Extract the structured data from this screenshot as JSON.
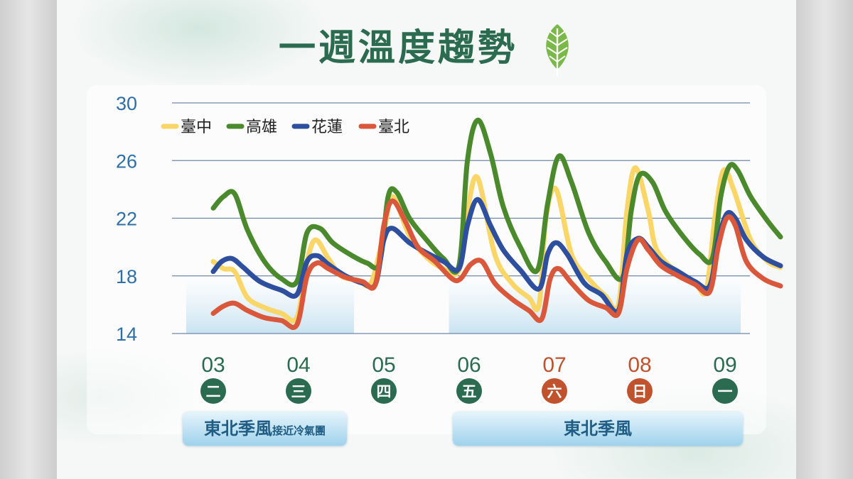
{
  "title": "一週溫度趨勢",
  "colors": {
    "title": "#2b6b50",
    "axis_text": "#2e6fa8",
    "weekday_date": "#2b6b50",
    "weekend_date": "#c0532d",
    "band": "#cfe6f3"
  },
  "banners": [
    {
      "main": "東北季風",
      "small": "接近冷氣團"
    },
    {
      "main": "東北季風",
      "small": ""
    }
  ],
  "chart_data": {
    "type": "line",
    "ylim": [
      14,
      30
    ],
    "yticks": [
      "30",
      "26",
      "22",
      "18",
      "14"
    ],
    "ytick_values": [
      30,
      26,
      22,
      18,
      14
    ],
    "categories": [
      "03",
      "04",
      "05",
      "06",
      "07",
      "08",
      "09"
    ],
    "weekdays": [
      "二",
      "三",
      "四",
      "五",
      "六",
      "日",
      "一"
    ],
    "weekend": [
      false,
      false,
      false,
      false,
      true,
      true,
      false
    ],
    "x_range": [
      0,
      6.65
    ],
    "shaded_days": [
      [
        0,
        1.65
      ],
      [
        3.08,
        6.65
      ]
    ],
    "legend": [
      "臺中",
      "高雄",
      "花蓮",
      "臺北"
    ],
    "series": [
      {
        "name": "臺中",
        "color": "#f9d667",
        "points": [
          [
            0,
            19.0
          ],
          [
            0.12,
            18.5
          ],
          [
            0.25,
            18.3
          ],
          [
            0.4,
            16.5
          ],
          [
            0.6,
            15.8
          ],
          [
            0.8,
            15.4
          ],
          [
            0.98,
            15.1
          ],
          [
            1.1,
            19.0
          ],
          [
            1.2,
            20.5
          ],
          [
            1.35,
            19.2
          ],
          [
            1.5,
            18.0
          ],
          [
            1.7,
            17.7
          ],
          [
            1.85,
            17.5
          ],
          [
            2.0,
            21.0
          ],
          [
            2.1,
            23.5
          ],
          [
            2.3,
            20.8
          ],
          [
            2.5,
            19.3
          ],
          [
            2.7,
            18.5
          ],
          [
            2.88,
            18.4
          ],
          [
            2.98,
            22.5
          ],
          [
            3.1,
            24.8
          ],
          [
            3.3,
            19.5
          ],
          [
            3.5,
            17.5
          ],
          [
            3.7,
            16.5
          ],
          [
            3.82,
            16.0
          ],
          [
            3.9,
            22.0
          ],
          [
            4.02,
            24.0
          ],
          [
            4.2,
            19.5
          ],
          [
            4.4,
            17.8
          ],
          [
            4.6,
            16.6
          ],
          [
            4.75,
            16.0
          ],
          [
            4.85,
            22.5
          ],
          [
            4.95,
            25.5
          ],
          [
            5.1,
            22.5
          ],
          [
            5.2,
            19.8
          ],
          [
            5.45,
            18.2
          ],
          [
            5.65,
            17.5
          ],
          [
            5.78,
            17.0
          ],
          [
            5.88,
            22.0
          ],
          [
            5.98,
            25.3
          ],
          [
            6.1,
            24.0
          ],
          [
            6.3,
            20.5
          ],
          [
            6.5,
            19.0
          ],
          [
            6.65,
            18.6
          ]
        ]
      },
      {
        "name": "高雄",
        "color": "#4a8a2c",
        "points": [
          [
            0,
            22.7
          ],
          [
            0.12,
            23.5
          ],
          [
            0.25,
            23.7
          ],
          [
            0.4,
            21.2
          ],
          [
            0.6,
            19.0
          ],
          [
            0.8,
            17.8
          ],
          [
            0.98,
            17.6
          ],
          [
            1.1,
            21.0
          ],
          [
            1.25,
            21.3
          ],
          [
            1.4,
            20.3
          ],
          [
            1.6,
            19.5
          ],
          [
            1.8,
            18.9
          ],
          [
            1.95,
            18.9
          ],
          [
            2.05,
            23.5
          ],
          [
            2.15,
            23.8
          ],
          [
            2.3,
            22.0
          ],
          [
            2.5,
            20.5
          ],
          [
            2.7,
            19.2
          ],
          [
            2.88,
            18.7
          ],
          [
            2.98,
            26.0
          ],
          [
            3.1,
            28.8
          ],
          [
            3.25,
            26.5
          ],
          [
            3.4,
            22.8
          ],
          [
            3.6,
            20.0
          ],
          [
            3.8,
            18.4
          ],
          [
            3.92,
            23.0
          ],
          [
            4.05,
            26.3
          ],
          [
            4.2,
            24.5
          ],
          [
            4.4,
            21.0
          ],
          [
            4.6,
            19.0
          ],
          [
            4.8,
            17.9
          ],
          [
            4.9,
            22.5
          ],
          [
            5.0,
            25.0
          ],
          [
            5.15,
            24.5
          ],
          [
            5.3,
            22.5
          ],
          [
            5.5,
            20.8
          ],
          [
            5.7,
            19.5
          ],
          [
            5.85,
            19.2
          ],
          [
            5.95,
            23.5
          ],
          [
            6.05,
            25.6
          ],
          [
            6.15,
            25.3
          ],
          [
            6.3,
            23.5
          ],
          [
            6.5,
            21.8
          ],
          [
            6.65,
            20.7
          ]
        ]
      },
      {
        "name": "花蓮",
        "color": "#2e4f9e",
        "points": [
          [
            0,
            18.3
          ],
          [
            0.1,
            19.0
          ],
          [
            0.22,
            19.2
          ],
          [
            0.35,
            18.6
          ],
          [
            0.55,
            17.6
          ],
          [
            0.8,
            17.0
          ],
          [
            0.98,
            16.7
          ],
          [
            1.1,
            19.0
          ],
          [
            1.22,
            19.4
          ],
          [
            1.35,
            18.8
          ],
          [
            1.55,
            18.0
          ],
          [
            1.75,
            17.5
          ],
          [
            1.9,
            17.4
          ],
          [
            2.0,
            20.5
          ],
          [
            2.1,
            21.3
          ],
          [
            2.3,
            20.3
          ],
          [
            2.5,
            19.6
          ],
          [
            2.7,
            19.0
          ],
          [
            2.88,
            18.5
          ],
          [
            2.98,
            21.5
          ],
          [
            3.1,
            23.3
          ],
          [
            3.25,
            21.5
          ],
          [
            3.4,
            19.8
          ],
          [
            3.6,
            18.4
          ],
          [
            3.82,
            17.1
          ],
          [
            3.92,
            19.5
          ],
          [
            4.02,
            20.3
          ],
          [
            4.15,
            19.5
          ],
          [
            4.35,
            17.5
          ],
          [
            4.55,
            16.7
          ],
          [
            4.75,
            15.6
          ],
          [
            4.85,
            19.5
          ],
          [
            4.98,
            20.6
          ],
          [
            5.1,
            20.0
          ],
          [
            5.25,
            19.0
          ],
          [
            5.45,
            18.3
          ],
          [
            5.65,
            17.6
          ],
          [
            5.82,
            17.3
          ],
          [
            5.92,
            20.5
          ],
          [
            6.02,
            22.3
          ],
          [
            6.12,
            22.0
          ],
          [
            6.25,
            20.5
          ],
          [
            6.45,
            19.3
          ],
          [
            6.65,
            18.7
          ]
        ]
      },
      {
        "name": "臺北",
        "color": "#d9583b",
        "points": [
          [
            0,
            15.4
          ],
          [
            0.12,
            15.9
          ],
          [
            0.25,
            16.1
          ],
          [
            0.4,
            15.6
          ],
          [
            0.6,
            15.1
          ],
          [
            0.8,
            14.9
          ],
          [
            0.98,
            14.6
          ],
          [
            1.1,
            18.0
          ],
          [
            1.22,
            18.9
          ],
          [
            1.35,
            18.5
          ],
          [
            1.55,
            17.9
          ],
          [
            1.75,
            17.6
          ],
          [
            1.9,
            17.4
          ],
          [
            2.0,
            21.5
          ],
          [
            2.1,
            23.2
          ],
          [
            2.25,
            21.8
          ],
          [
            2.4,
            20.0
          ],
          [
            2.6,
            19.0
          ],
          [
            2.8,
            17.8
          ],
          [
            2.9,
            17.8
          ],
          [
            3.02,
            18.8
          ],
          [
            3.15,
            19.0
          ],
          [
            3.3,
            17.5
          ],
          [
            3.5,
            16.4
          ],
          [
            3.7,
            15.6
          ],
          [
            3.85,
            15.0
          ],
          [
            3.95,
            17.8
          ],
          [
            4.05,
            18.5
          ],
          [
            4.2,
            17.5
          ],
          [
            4.4,
            16.3
          ],
          [
            4.6,
            15.8
          ],
          [
            4.75,
            15.4
          ],
          [
            4.85,
            18.5
          ],
          [
            4.98,
            20.5
          ],
          [
            5.1,
            19.8
          ],
          [
            5.25,
            18.7
          ],
          [
            5.45,
            18.0
          ],
          [
            5.65,
            17.4
          ],
          [
            5.82,
            16.9
          ],
          [
            5.92,
            20.0
          ],
          [
            6.02,
            22.0
          ],
          [
            6.12,
            21.5
          ],
          [
            6.25,
            19.0
          ],
          [
            6.45,
            17.8
          ],
          [
            6.65,
            17.3
          ]
        ]
      }
    ]
  }
}
